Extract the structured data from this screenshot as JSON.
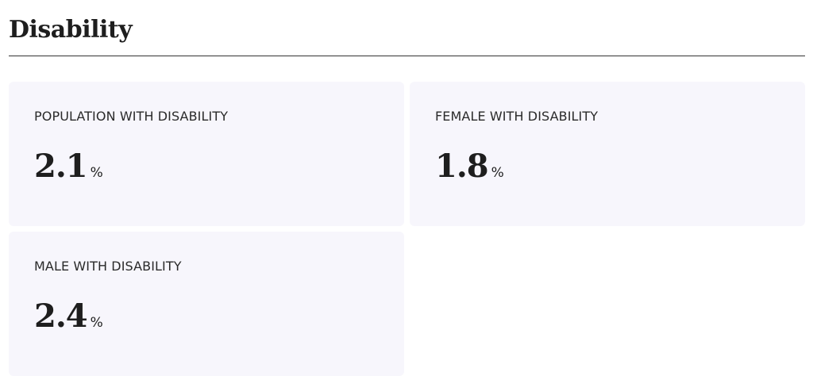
{
  "header": {
    "title": "Disability"
  },
  "cards": [
    {
      "label": "POPULATION WITH DISABILITY",
      "value": 2.1,
      "unit": "%"
    },
    {
      "label": "FEMALE WITH DISABILITY",
      "value": 1.8,
      "unit": "%"
    },
    {
      "label": "MALE WITH DISABILITY",
      "value": 2.4,
      "unit": "%"
    }
  ]
}
